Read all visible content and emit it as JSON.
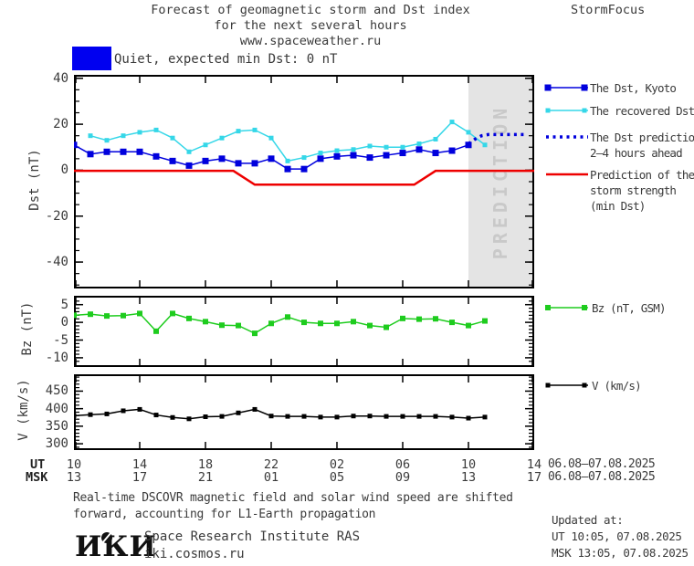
{
  "header": {
    "title_line1": "Forecast of geomagnetic storm and Dst index",
    "title_line2": "for the next several hours",
    "title_line3": "www.spaceweather.ru",
    "brand": "StormFocus"
  },
  "status_banner": {
    "label": "Quiet, expected min Dst: 0 nT",
    "color": "#0000f0"
  },
  "colors": {
    "dst_kyoto": "#0000dd",
    "dst_recovered": "#35d7e8",
    "dst_prediction": "#0000dd",
    "storm_prediction": "#ee0000",
    "bz": "#1ecc1e",
    "v": "#000000",
    "prediction_zone_bg": "#e4e4e4",
    "prediction_zone_text": "#c9c9c9"
  },
  "chart_data": {
    "type": "line",
    "title": "Forecast of geomagnetic storm and Dst index for the next several hours",
    "x_axis": {
      "xlim": [
        10,
        38
      ],
      "tick_hours": [
        10,
        14,
        18,
        22,
        26,
        30,
        34,
        38
      ],
      "ut_label": "UT",
      "msk_label": "MSK",
      "ut_ticks": [
        "10",
        "14",
        "18",
        "22",
        "02",
        "06",
        "10",
        "14"
      ],
      "msk_ticks": [
        "13",
        "17",
        "21",
        "01",
        "05",
        "09",
        "13",
        "17"
      ],
      "date_range_ut": "06.08–07.08.2025",
      "date_range_msk": "06.08–07.08.2025"
    },
    "panels": [
      {
        "id": "dst",
        "ylabel": "Dst (nT)",
        "ylim": [
          -51.5,
          41.5
        ],
        "yticks": [
          40,
          20,
          0,
          -20,
          -40
        ],
        "minor_step": 5,
        "prediction_zone": {
          "start_hour": 34,
          "end_hour": 38,
          "label": "PREDICTION"
        },
        "series": [
          {
            "key": "dst_kyoto",
            "name": "The Dst, Kyoto",
            "style": "line-squares",
            "msize": 7,
            "width": 1.5,
            "x": [
              10,
              11,
              12,
              13,
              14,
              15,
              16,
              17,
              18,
              19,
              20,
              21,
              22,
              23,
              24,
              25,
              26,
              27,
              28,
              29,
              30,
              31,
              32,
              33,
              34
            ],
            "y": [
              11,
              7,
              8,
              8,
              8,
              6,
              4,
              2,
              4,
              5,
              3,
              3,
              5,
              0.5,
              0.5,
              5,
              6,
              6.5,
              5.5,
              6.5,
              7.5,
              9,
              7.5,
              8.5,
              11
            ]
          },
          {
            "key": "dst_recovered",
            "name": "The recovered Dst",
            "style": "line-squares",
            "msize": 5,
            "width": 1.5,
            "x": [
              11,
              12,
              13,
              14,
              15,
              16,
              17,
              18,
              19,
              20,
              21,
              22,
              23,
              24,
              25,
              26,
              27,
              28,
              29,
              30,
              31,
              32,
              33,
              34,
              35
            ],
            "y": [
              15,
              13,
              15,
              16.5,
              17.5,
              14,
              8,
              11,
              14,
              17,
              17.5,
              14,
              4,
              5.5,
              7.5,
              8.5,
              9,
              10.5,
              10,
              10,
              11.5,
              13.5,
              21,
              16.5,
              11
            ]
          },
          {
            "key": "dst_prediction",
            "name": "The Dst prediction 2–4 hours ahead",
            "style": "dotted",
            "width": 3.5,
            "x": [
              34,
              34.4,
              34.8,
              35.2,
              37.5
            ],
            "y": [
              11.5,
              13.5,
              15,
              15.5,
              15.5
            ]
          },
          {
            "key": "storm_prediction",
            "name": "Prediction of the storm strength (min Dst)",
            "style": "line",
            "width": 2.5,
            "x": [
              10,
              19.7,
              21,
              30.7,
              32,
              38
            ],
            "y": [
              -0.3,
              -0.3,
              -6.3,
              -6.3,
              -0.3,
              -0.3
            ]
          }
        ]
      },
      {
        "id": "bz",
        "ylabel": "Bz (nT)",
        "ylim": [
          -12.6,
          7.5
        ],
        "yticks": [
          5,
          0,
          -5,
          -10
        ],
        "minor_step": 1,
        "series": [
          {
            "key": "bz",
            "name": "Bz (nT, GSM)",
            "style": "line-squares",
            "msize": 6,
            "width": 1.5,
            "x": [
              10,
              11,
              12,
              13,
              14,
              15,
              16,
              17,
              18,
              19,
              20,
              21,
              22,
              23,
              24,
              25,
              26,
              27,
              28,
              29,
              30,
              31,
              32,
              33,
              34,
              35
            ],
            "y": [
              2,
              2.3,
              1.8,
              1.9,
              2.5,
              -2.5,
              2.5,
              1.1,
              0.2,
              -0.8,
              -0.9,
              -3.1,
              -0.3,
              1.5,
              0,
              -0.3,
              -0.3,
              0.2,
              -0.9,
              -1.4,
              1.1,
              0.9,
              1,
              0,
              -0.9,
              0.4
            ]
          }
        ]
      },
      {
        "id": "v",
        "ylabel": "V (km/s)",
        "ylim": [
          282,
          498
        ],
        "yticks": [
          450,
          400,
          350,
          300
        ],
        "minor_step": 10,
        "series": [
          {
            "key": "v",
            "name": "V (km/s)",
            "style": "line-squares",
            "msize": 5,
            "width": 1.5,
            "x": [
              10,
              11,
              12,
              13,
              14,
              15,
              16,
              17,
              18,
              19,
              20,
              21,
              22,
              23,
              24,
              25,
              26,
              27,
              28,
              29,
              30,
              31,
              32,
              33,
              34,
              35
            ],
            "y": [
              380,
              383,
              385,
              394,
              398,
              382,
              375,
              371,
              377,
              378,
              388,
              398,
              379,
              378,
              378,
              376,
              376,
              379,
              379,
              378,
              378,
              378,
              378,
              376,
              373,
              376
            ]
          }
        ]
      }
    ],
    "legend": {
      "dst_kyoto": "The Dst, Kyoto",
      "dst_recovered": "The recovered Dst",
      "dst_prediction_line1": "The Dst prediction",
      "dst_prediction_line2": "2–4 hours ahead",
      "storm_line1": "Prediction of the",
      "storm_line2": "storm strength",
      "storm_line3": "(min Dst)",
      "bz": "Bz (nT, GSM)",
      "v": "V (km/s)"
    }
  },
  "footnote": {
    "line1": "Real-time DSCOVR magnetic field and solar wind speed are shifted",
    "line2": "forward, accounting for L1-Earth propagation"
  },
  "footer": {
    "logo_text": "ИКИ",
    "org_line1": "Space Research Institute RAS",
    "org_line2": "iki.cosmos.ru",
    "updated_label": "Updated at:",
    "updated_ut": "UT  10:05, 07.08.2025",
    "updated_msk": "MSK 13:05, 07.08.2025"
  }
}
